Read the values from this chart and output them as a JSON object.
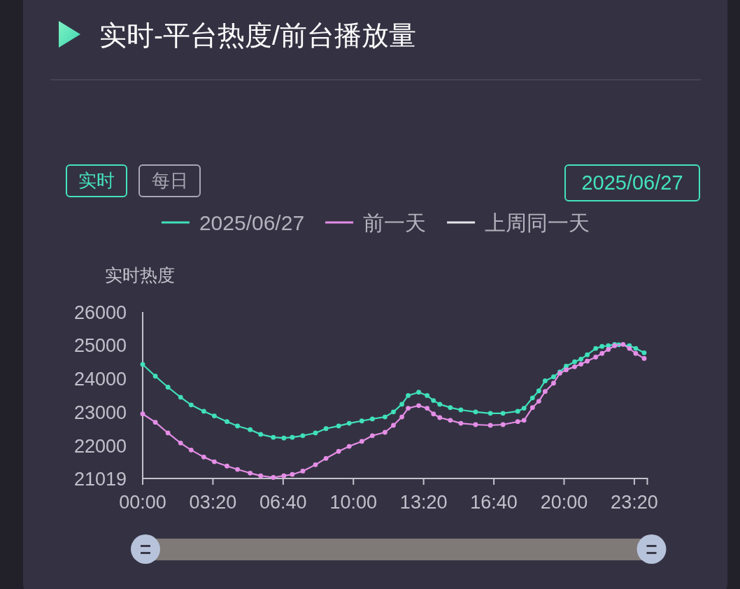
{
  "chart_data": {
    "type": "line",
    "title": "实时-平台热度/前台播放量",
    "ylabel": "实时热度",
    "annotations": [
      "实时",
      "每日",
      "2025/06/27"
    ],
    "x": [
      0,
      0.6,
      1.2,
      1.8,
      2.3,
      2.9,
      3.4,
      4.0,
      4.5,
      5.1,
      5.6,
      6.2,
      6.7,
      7.1,
      7.6,
      8.2,
      8.7,
      9.3,
      9.8,
      10.4,
      10.9,
      11.5,
      11.9,
      12.3,
      12.6,
      13.1,
      13.5,
      13.8,
      14.1,
      14.6,
      15.1,
      15.8,
      16.5,
      17.1,
      17.8,
      18.1,
      18.5,
      18.8,
      19.1,
      19.5,
      19.8,
      20.1,
      20.5,
      20.8,
      21.1,
      21.5,
      21.8,
      22.1,
      22.4,
      22.8,
      23.1,
      23.4,
      23.8
    ],
    "series": [
      {
        "name": "2025/06/27",
        "color": "#40e0bc",
        "x": [
          0,
          0.6,
          1.2,
          1.8,
          2.3,
          2.9,
          3.4,
          4.0,
          4.5,
          5.1,
          5.6,
          6.2,
          6.7,
          7.1,
          7.6,
          8.2,
          8.7,
          9.3,
          9.8,
          10.4,
          10.9,
          11.5,
          11.9,
          12.3,
          12.6,
          13.1,
          13.5,
          13.8,
          14.1,
          14.6,
          15.1,
          15.8,
          16.5,
          17.1,
          17.8,
          18.1,
          18.5,
          18.8,
          19.1,
          19.5,
          19.8,
          20.1,
          20.5,
          20.8,
          21.1,
          21.5,
          21.8,
          22.1,
          22.4,
          22.6,
          23.1,
          23.4,
          23.8
        ],
        "values": [
          24430,
          24080,
          23750,
          23450,
          23220,
          23030,
          22890,
          22720,
          22590,
          22480,
          22340,
          22250,
          22230,
          22250,
          22300,
          22380,
          22510,
          22590,
          22670,
          22740,
          22800,
          22860,
          23010,
          23240,
          23500,
          23600,
          23500,
          23350,
          23240,
          23140,
          23070,
          23010,
          22970,
          22970,
          23030,
          23120,
          23430,
          23640,
          23940,
          24060,
          24210,
          24380,
          24510,
          24590,
          24720,
          24910,
          24970,
          24990,
          25030,
          25020,
          24990,
          24910,
          24780
        ]
      },
      {
        "name": "前一天",
        "color": "#e48ee6",
        "values": [
          22950,
          22700,
          22380,
          22080,
          21870,
          21660,
          21520,
          21390,
          21290,
          21180,
          21100,
          21050,
          21100,
          21140,
          21240,
          21430,
          21620,
          21830,
          21980,
          22130,
          22300,
          22400,
          22610,
          22860,
          23120,
          23200,
          23120,
          22950,
          22840,
          22760,
          22670,
          22630,
          22610,
          22630,
          22720,
          22760,
          23140,
          23330,
          23620,
          23870,
          24170,
          24270,
          24360,
          24440,
          24530,
          24650,
          24760,
          24880,
          24990,
          25030,
          24910,
          24760,
          24610
        ]
      },
      {
        "name": "上周同一天",
        "color": "#e6e6ea",
        "values": [
          null,
          null,
          null,
          null,
          null,
          null,
          null,
          null,
          null,
          null,
          null,
          null,
          null,
          null,
          null,
          null,
          null,
          null,
          null,
          null,
          null,
          null,
          null,
          null,
          null,
          null,
          null,
          null,
          null,
          null,
          null,
          null,
          null,
          null,
          null,
          null,
          null,
          null,
          null,
          null,
          null,
          null,
          null,
          null,
          null,
          null,
          null,
          null,
          null,
          null,
          null,
          null,
          null
        ]
      }
    ],
    "xlim": [
      0,
      23.95
    ],
    "xticks": [
      {
        "value": 0,
        "label": "00:00"
      },
      {
        "value": 3.333,
        "label": "03:20"
      },
      {
        "value": 6.667,
        "label": "06:40"
      },
      {
        "value": 10,
        "label": "10:00"
      },
      {
        "value": 13.333,
        "label": "13:20"
      },
      {
        "value": 16.667,
        "label": "16:40"
      },
      {
        "value": 20,
        "label": "20:00"
      },
      {
        "value": 23.333,
        "label": "23:20"
      },
      {
        "value": 23.95,
        "label": null
      }
    ],
    "ylim": [
      21019,
      26000
    ],
    "yticks": [
      21019,
      22000,
      23000,
      24000,
      25000,
      26000
    ],
    "legend": "top",
    "marker": "circle",
    "line_style": "solid"
  }
}
